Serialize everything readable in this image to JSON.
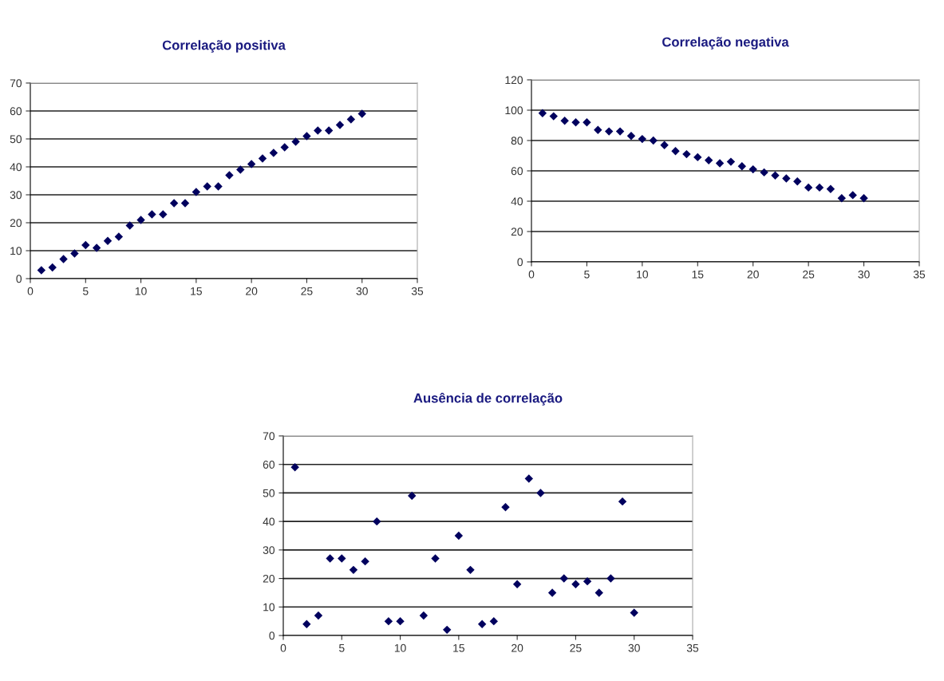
{
  "chart_data": [
    {
      "type": "scatter",
      "title": "Correlação positiva",
      "x": [
        1,
        2,
        3,
        4,
        5,
        6,
        7,
        8,
        9,
        10,
        11,
        12,
        13,
        14,
        15,
        16,
        17,
        18,
        19,
        20,
        21,
        22,
        23,
        24,
        25,
        26,
        27,
        28,
        29,
        30
      ],
      "series": [
        {
          "color": "#00005e",
          "values": [
            3,
            4,
            7,
            9,
            12,
            11,
            13.5,
            15,
            19,
            21,
            23,
            23,
            27,
            27,
            31,
            33,
            33,
            37,
            39,
            41,
            43,
            45,
            47,
            49,
            51,
            53,
            53,
            55,
            57,
            59
          ]
        }
      ],
      "xlim": [
        0,
        35
      ],
      "xticks": [
        0,
        5,
        10,
        15,
        20,
        25,
        30,
        35
      ],
      "ylim": [
        0,
        70
      ],
      "yticks": [
        0,
        10,
        20,
        30,
        40,
        50,
        60,
        70
      ],
      "grid": "y",
      "marker": "diamond"
    },
    {
      "type": "scatter",
      "title": "Correlação negativa",
      "x": [
        1,
        2,
        3,
        4,
        5,
        6,
        7,
        8,
        9,
        10,
        11,
        12,
        13,
        14,
        15,
        16,
        17,
        18,
        19,
        20,
        21,
        22,
        23,
        24,
        25,
        26,
        27,
        28,
        29,
        30
      ],
      "series": [
        {
          "color": "#00005e",
          "values": [
            98,
            96,
            93,
            92,
            92,
            87,
            86,
            86,
            83,
            81,
            80,
            77,
            73,
            71,
            69,
            67,
            65,
            66,
            63,
            61,
            59,
            57,
            55,
            53,
            49,
            49,
            48,
            42,
            44,
            42
          ]
        }
      ],
      "xlim": [
        0,
        35
      ],
      "xticks": [
        0,
        5,
        10,
        15,
        20,
        25,
        30,
        35
      ],
      "ylim": [
        0,
        120
      ],
      "yticks": [
        0,
        20,
        40,
        60,
        80,
        100,
        120
      ],
      "grid": "y",
      "marker": "diamond"
    },
    {
      "type": "scatter",
      "title": "Ausência de correlação",
      "x": [
        1,
        2,
        3,
        4,
        5,
        6,
        7,
        8,
        9,
        10,
        11,
        12,
        13,
        14,
        15,
        16,
        17,
        18,
        19,
        20,
        21,
        22,
        23,
        24,
        25,
        26,
        27,
        28,
        29,
        30
      ],
      "series": [
        {
          "color": "#00005e",
          "values": [
            59,
            4,
            7,
            27,
            27,
            23,
            26,
            40,
            5,
            5,
            49,
            7,
            27,
            2,
            35,
            23,
            4,
            5,
            45,
            18,
            55,
            50,
            15,
            20,
            18,
            19,
            15,
            20,
            47,
            8
          ]
        }
      ],
      "xlim": [
        0,
        35
      ],
      "xticks": [
        0,
        5,
        10,
        15,
        20,
        25,
        30,
        35
      ],
      "ylim": [
        0,
        70
      ],
      "yticks": [
        0,
        10,
        20,
        30,
        40,
        50,
        60,
        70
      ],
      "grid": "y",
      "marker": "diamond"
    }
  ]
}
